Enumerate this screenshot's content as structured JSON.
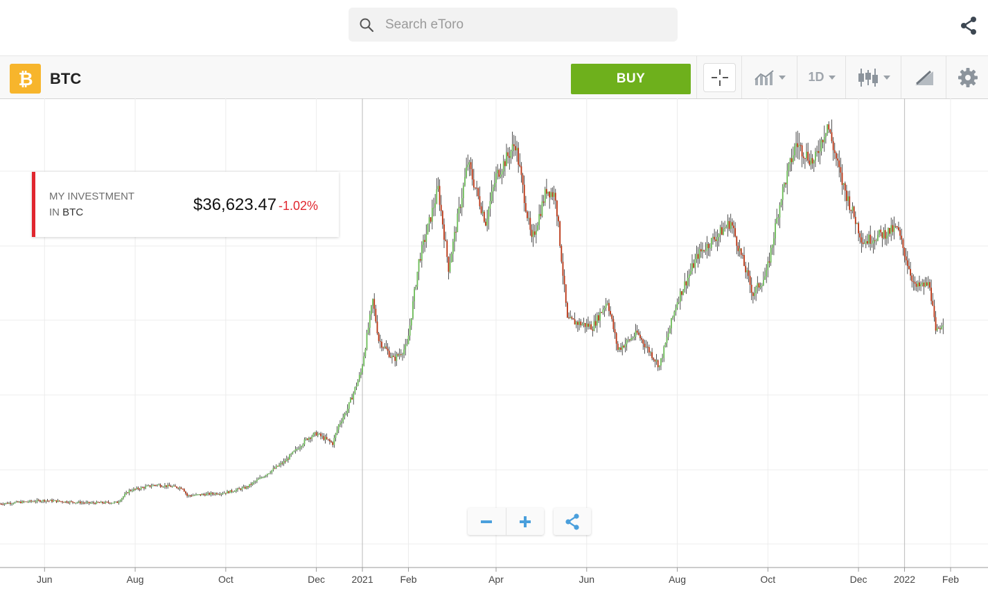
{
  "search": {
    "placeholder": "Search eToro"
  },
  "toolbar": {
    "symbol": "BTC",
    "buy_label": "BUY",
    "interval": "1D",
    "colors": {
      "buy": "#6eb01c",
      "logo": "#f7b52c",
      "up": "#6abb55",
      "down": "#b8310f"
    }
  },
  "investment": {
    "label_line1": "MY INVESTMENT",
    "label_in": "IN",
    "label_symbol": "BTC",
    "value": "$36,623.47",
    "change": "-1.02%"
  },
  "icons": {
    "search": "search-icon",
    "share": "share-icon",
    "crosshair": "crosshair-icon",
    "compare": "compare-chart-icon",
    "candles": "candlestick-icon",
    "draw": "drawing-tools-icon",
    "settings": "gear-icon",
    "zoom_out": "minus-icon",
    "zoom_in": "plus-icon"
  },
  "chart_data": {
    "type": "candlestick",
    "x_tick_labels": [
      "Jun",
      "Aug",
      "Oct",
      "Dec",
      "2021",
      "Feb",
      "Apr",
      "Jun",
      "Aug",
      "Oct",
      "Dec",
      "2022",
      "Feb"
    ],
    "x_tick_dates": [
      "2020-06-01",
      "2020-08-01",
      "2020-10-01",
      "2020-12-01",
      "2021-01-01",
      "2021-02-01",
      "2021-04-01",
      "2021-06-01",
      "2021-08-01",
      "2021-10-01",
      "2021-12-01",
      "2022-01-01",
      "2022-02-01"
    ],
    "x_range": [
      "2020-05-02",
      "2022-02-15"
    ],
    "y_axis_labels": [],
    "year_separators": [
      "2021-01-01",
      "2022-01-01"
    ],
    "grid": true,
    "close_series": [
      {
        "date": "2020-05-02",
        "close": 9000
      },
      {
        "date": "2020-06-01",
        "close": 9500
      },
      {
        "date": "2020-07-01",
        "close": 9100
      },
      {
        "date": "2020-07-20",
        "close": 9200
      },
      {
        "date": "2020-07-28",
        "close": 11000
      },
      {
        "date": "2020-08-15",
        "close": 11900
      },
      {
        "date": "2020-09-02",
        "close": 11400
      },
      {
        "date": "2020-09-05",
        "close": 10200
      },
      {
        "date": "2020-10-01",
        "close": 10700
      },
      {
        "date": "2020-10-15",
        "close": 11500
      },
      {
        "date": "2020-10-25",
        "close": 13000
      },
      {
        "date": "2020-11-10",
        "close": 15500
      },
      {
        "date": "2020-11-25",
        "close": 19000
      },
      {
        "date": "2020-12-01",
        "close": 19700
      },
      {
        "date": "2020-12-12",
        "close": 18200
      },
      {
        "date": "2020-12-16",
        "close": 21000
      },
      {
        "date": "2020-12-22",
        "close": 23500
      },
      {
        "date": "2020-12-31",
        "close": 29000
      },
      {
        "date": "2021-01-08",
        "close": 40000
      },
      {
        "date": "2021-01-12",
        "close": 34000
      },
      {
        "date": "2021-01-22",
        "close": 31000
      },
      {
        "date": "2021-01-31",
        "close": 33000
      },
      {
        "date": "2021-02-08",
        "close": 46000
      },
      {
        "date": "2021-02-21",
        "close": 57000
      },
      {
        "date": "2021-02-28",
        "close": 45000
      },
      {
        "date": "2021-03-13",
        "close": 61000
      },
      {
        "date": "2021-03-25",
        "close": 52000
      },
      {
        "date": "2021-04-01",
        "close": 59000
      },
      {
        "date": "2021-04-14",
        "close": 64000
      },
      {
        "date": "2021-04-25",
        "close": 49000
      },
      {
        "date": "2021-05-05",
        "close": 57000
      },
      {
        "date": "2021-05-11",
        "close": 56000
      },
      {
        "date": "2021-05-19",
        "close": 37000
      },
      {
        "date": "2021-06-05",
        "close": 36000
      },
      {
        "date": "2021-06-15",
        "close": 40000
      },
      {
        "date": "2021-06-22",
        "close": 32500
      },
      {
        "date": "2021-07-05",
        "close": 35000
      },
      {
        "date": "2021-07-20",
        "close": 30000
      },
      {
        "date": "2021-08-01",
        "close": 40000
      },
      {
        "date": "2021-08-15",
        "close": 47000
      },
      {
        "date": "2021-09-06",
        "close": 52000
      },
      {
        "date": "2021-09-21",
        "close": 41000
      },
      {
        "date": "2021-09-30",
        "close": 44000
      },
      {
        "date": "2021-10-10",
        "close": 56000
      },
      {
        "date": "2021-10-20",
        "close": 64000
      },
      {
        "date": "2021-11-01",
        "close": 61000
      },
      {
        "date": "2021-11-10",
        "close": 67000
      },
      {
        "date": "2021-11-20",
        "close": 58000
      },
      {
        "date": "2021-12-04",
        "close": 49000
      },
      {
        "date": "2021-12-27",
        "close": 51000
      },
      {
        "date": "2022-01-08",
        "close": 42000
      },
      {
        "date": "2022-01-18",
        "close": 42500
      },
      {
        "date": "2022-01-22",
        "close": 35000
      },
      {
        "date": "2022-01-27",
        "close": 36800
      }
    ]
  }
}
